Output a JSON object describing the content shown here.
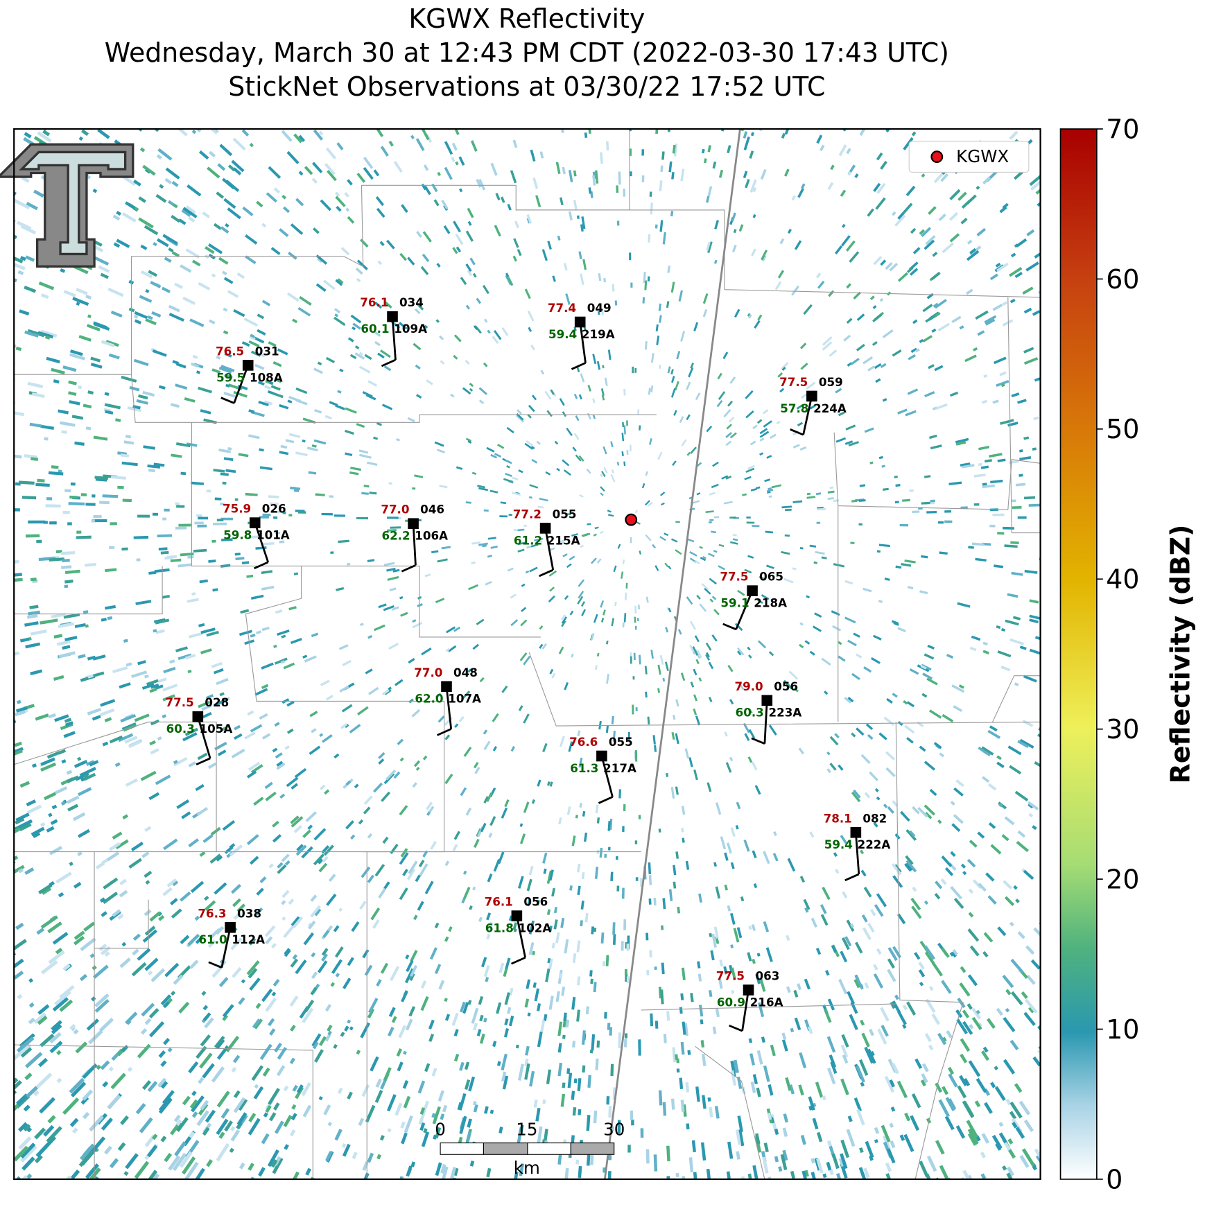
{
  "header": {
    "title": "KGWX Reflectivity",
    "subtitle": "Wednesday, March 30 at 12:43 PM CDT (2022-03-30 17:43 UTC)",
    "observations": "StickNet Observations at 03/30/22 17:52 UTC"
  },
  "legend": {
    "label": "KGWX"
  },
  "colorbar": {
    "label": "Reflectivity (dBZ)",
    "lim": [
      0,
      70
    ],
    "ticks": [
      0,
      10,
      20,
      30,
      40,
      50,
      60,
      70
    ]
  },
  "scale_bar": {
    "ticks": [
      "0",
      "15",
      "30"
    ],
    "unit": "km"
  },
  "stations": [
    {
      "id": "108A",
      "temperature": "76.5",
      "dewpoint": "59.5",
      "value": "031"
    },
    {
      "id": "109A",
      "temperature": "76.1",
      "dewpoint": "60.1",
      "value": "034"
    },
    {
      "id": "219A",
      "temperature": "77.4",
      "dewpoint": "59.4",
      "value": "049"
    },
    {
      "id": "224A",
      "temperature": "77.5",
      "dewpoint": "57.8",
      "value": "059"
    },
    {
      "id": "101A",
      "temperature": "75.9",
      "dewpoint": "59.8",
      "value": "026"
    },
    {
      "id": "106A",
      "temperature": "77.0",
      "dewpoint": "62.2",
      "value": "046"
    },
    {
      "id": "215A",
      "temperature": "77.2",
      "dewpoint": "61.2",
      "value": "055"
    },
    {
      "id": "218A",
      "temperature": "77.5",
      "dewpoint": "59.1",
      "value": "065"
    },
    {
      "id": "105A",
      "temperature": "77.5",
      "dewpoint": "60.3",
      "value": "028"
    },
    {
      "id": "107A",
      "temperature": "77.0",
      "dewpoint": "62.0",
      "value": "048"
    },
    {
      "id": "223A",
      "temperature": "79.0",
      "dewpoint": "60.3",
      "value": "056"
    },
    {
      "id": "217A",
      "temperature": "76.6",
      "dewpoint": "61.3",
      "value": "055"
    },
    {
      "id": "222A",
      "temperature": "78.1",
      "dewpoint": "59.4",
      "value": "082"
    },
    {
      "id": "112A",
      "temperature": "76.3",
      "dewpoint": "61.0",
      "value": "038"
    },
    {
      "id": "102A",
      "temperature": "76.1",
      "dewpoint": "61.8",
      "value": "056"
    },
    {
      "id": "216A",
      "temperature": "77.5",
      "dewpoint": "60.9",
      "value": "063"
    }
  ]
}
